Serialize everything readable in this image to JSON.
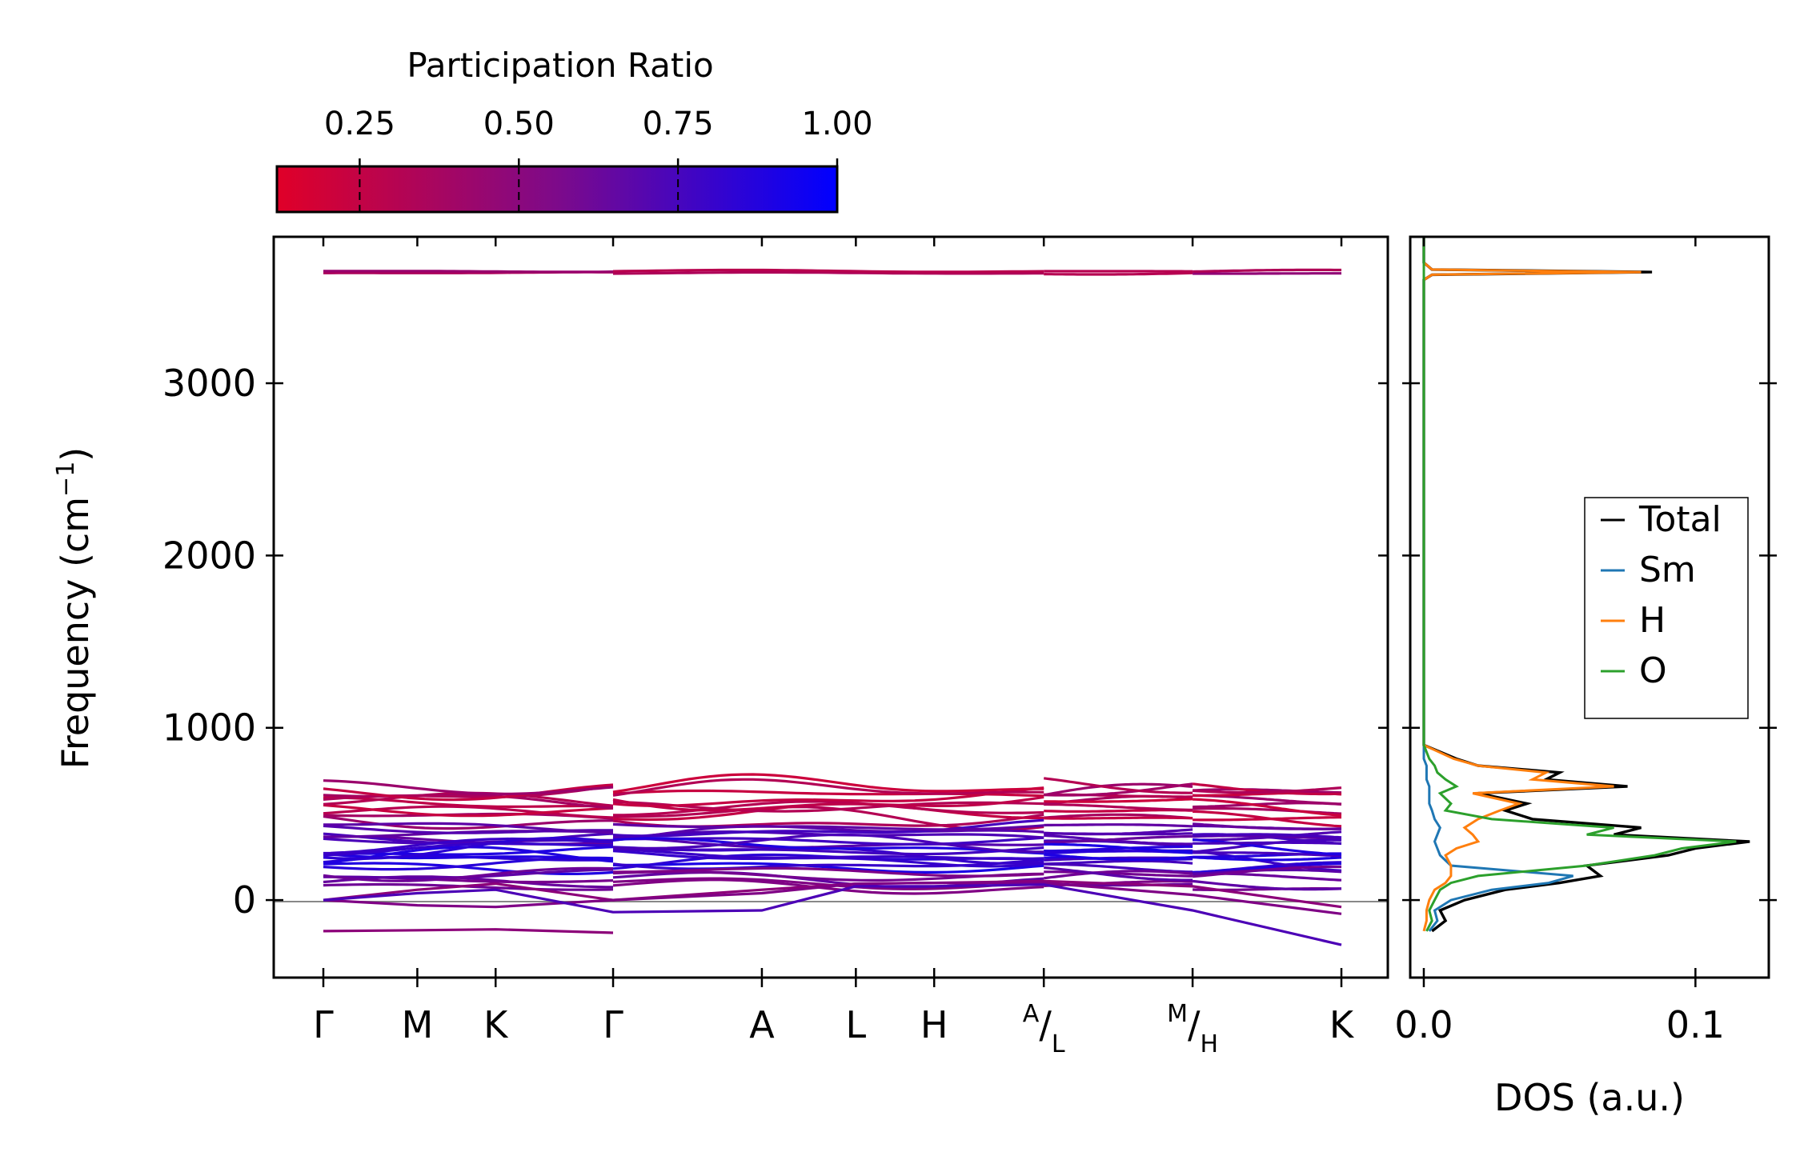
{
  "chart_data": [
    {
      "type": "line",
      "name": "phonon-band-structure",
      "ylabel": "Frequency (cm",
      "ylabel_sup": "−1",
      "ylabel_end": ")",
      "ylim": [
        -450,
        3850
      ],
      "y_ticks": [
        0,
        1000,
        2000,
        3000
      ],
      "y_tick_labels": [
        "0",
        "1000",
        "2000",
        "3000"
      ],
      "x_ticks": [
        0,
        0.6,
        1.1,
        1.85,
        2.8,
        3.4,
        3.9,
        4.6,
        5.55,
        6.5
      ],
      "x_segments": [
        [
          0,
          1.85
        ],
        [
          1.85,
          4.6
        ],
        [
          4.6,
          5.55
        ],
        [
          5.55,
          6.5
        ]
      ],
      "x_tick_labels": [
        {
          "main": "Γ"
        },
        {
          "main": "M"
        },
        {
          "main": "K"
        },
        {
          "main": "Γ"
        },
        {
          "main": "A"
        },
        {
          "main": "L"
        },
        {
          "main": "H"
        },
        {
          "sup": "A",
          "main": "/",
          "sub": "L"
        },
        {
          "sup": "M",
          "main": "/",
          "sub": "H"
        },
        {
          "main": "K"
        }
      ],
      "zero_line": 0,
      "band_groups": [
        {
          "base": 3645,
          "count": 2,
          "spread": 12,
          "amp": 8,
          "pr": 0.35
        },
        {
          "base": 560,
          "count": 10,
          "spread": 22,
          "amp": 60,
          "pr": 0.3
        },
        {
          "base": 380,
          "count": 6,
          "spread": 20,
          "amp": 45,
          "pr": 0.65
        },
        {
          "base": 260,
          "count": 9,
          "spread": 16,
          "amp": 50,
          "pr": 0.8
        },
        {
          "base": 120,
          "count": 5,
          "spread": 22,
          "amp": 40,
          "pr": 0.55
        }
      ],
      "acoustic_bands": [
        {
          "values": [
            0,
            60,
            95,
            0,
            60,
            95,
            100,
            110,
            80,
            -40
          ],
          "pr": 0.45
        },
        {
          "values": [
            0,
            -30,
            -40,
            0,
            40,
            95,
            100,
            100,
            30,
            -80
          ],
          "pr": 0.5
        },
        {
          "values": [
            0,
            40,
            60,
            -70,
            -60,
            80,
            80,
            90,
            -60,
            -260
          ],
          "pr": 0.7
        },
        {
          "values": [
            -180,
            -175,
            -170,
            -190
          ],
          "pr": 0.45
        }
      ]
    },
    {
      "type": "line",
      "name": "density-of-states",
      "xlabel": "DOS (a.u.)",
      "xlim": [
        -0.005,
        0.127
      ],
      "x_ticks": [
        0.0,
        0.1
      ],
      "x_tick_labels": [
        "0.0",
        "0.1"
      ],
      "ylim": [
        -450,
        3850
      ],
      "series": [
        {
          "name": "Total",
          "color": "#000000",
          "y": [
            -180,
            -120,
            -60,
            0,
            60,
            100,
            140,
            200,
            260,
            300,
            340,
            380,
            420,
            470,
            520,
            560,
            620,
            660,
            700,
            740,
            780,
            820,
            900,
            3600,
            3630,
            3645,
            3660,
            3700
          ],
          "x": [
            0.003,
            0.008,
            0.006,
            0.015,
            0.03,
            0.05,
            0.065,
            0.06,
            0.09,
            0.1,
            0.12,
            0.07,
            0.08,
            0.04,
            0.03,
            0.038,
            0.02,
            0.075,
            0.045,
            0.05,
            0.02,
            0.012,
            0.0,
            0.0,
            0.003,
            0.084,
            0.003,
            0.0
          ]
        },
        {
          "name": "Sm",
          "color": "#1f77b4",
          "y": [
            -180,
            -120,
            -60,
            0,
            60,
            100,
            140,
            200,
            260,
            300,
            340,
            380,
            420,
            470,
            520,
            560,
            620,
            660,
            700,
            740,
            780,
            820,
            900,
            3600,
            3645,
            3700
          ],
          "x": [
            0.002,
            0.005,
            0.004,
            0.01,
            0.025,
            0.046,
            0.055,
            0.01,
            0.006,
            0.005,
            0.004,
            0.005,
            0.006,
            0.004,
            0.003,
            0.002,
            0.002,
            0.002,
            0.001,
            0.001,
            0.001,
            0.0,
            0.0,
            0.0,
            0.0,
            0.0
          ]
        },
        {
          "name": "H",
          "color": "#ff7f0e",
          "y": [
            -180,
            -120,
            -60,
            0,
            60,
            100,
            140,
            200,
            260,
            300,
            340,
            380,
            420,
            470,
            520,
            560,
            620,
            660,
            700,
            740,
            780,
            820,
            900,
            3600,
            3630,
            3645,
            3660,
            3700
          ],
          "x": [
            0.0,
            0.001,
            0.001,
            0.002,
            0.004,
            0.008,
            0.01,
            0.01,
            0.008,
            0.012,
            0.02,
            0.018,
            0.015,
            0.02,
            0.028,
            0.035,
            0.018,
            0.07,
            0.04,
            0.045,
            0.02,
            0.011,
            0.0,
            0.0,
            0.003,
            0.08,
            0.003,
            0.0
          ]
        },
        {
          "name": "O",
          "color": "#2ca02c",
          "y": [
            -180,
            -120,
            -60,
            0,
            60,
            100,
            140,
            200,
            260,
            300,
            340,
            380,
            420,
            470,
            520,
            560,
            620,
            660,
            700,
            740,
            780,
            820,
            900,
            3600,
            3645,
            3700
          ],
          "x": [
            0.001,
            0.003,
            0.002,
            0.004,
            0.006,
            0.01,
            0.02,
            0.06,
            0.085,
            0.095,
            0.115,
            0.06,
            0.07,
            0.025,
            0.008,
            0.01,
            0.006,
            0.012,
            0.008,
            0.005,
            0.004,
            0.002,
            0.0,
            0.0,
            0.0,
            0.0
          ]
        }
      ],
      "legend": {
        "position": "center-right",
        "entries": [
          {
            "label": "Total",
            "color": "#000000"
          },
          {
            "label": "Sm",
            "color": "#1f77b4"
          },
          {
            "label": "H",
            "color": "#ff7f0e"
          },
          {
            "label": "O",
            "color": "#2ca02c"
          }
        ]
      }
    },
    {
      "type": "colorbar",
      "name": "participation-ratio-colorbar",
      "title": "Participation Ratio",
      "range": [
        0.12,
        1.0
      ],
      "ticks": [
        0.25,
        0.5,
        0.75,
        1.0
      ],
      "tick_labels": [
        "0.25",
        "0.50",
        "0.75",
        "1.00"
      ],
      "color_low": "#e00028",
      "color_high": "#0000ff"
    }
  ]
}
